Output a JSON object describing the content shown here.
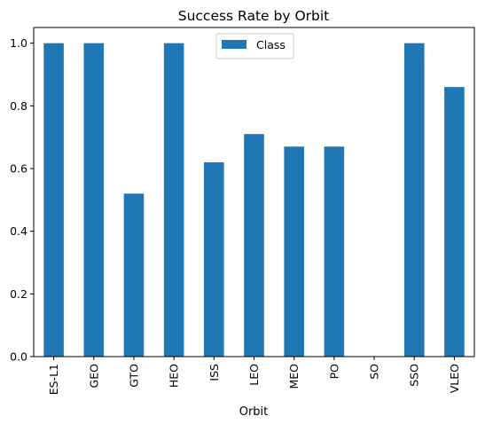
{
  "chart_data": {
    "type": "bar",
    "title": "Success Rate by Orbit",
    "xlabel": "Orbit",
    "ylabel": "",
    "categories": [
      "ES-L1",
      "GEO",
      "GTO",
      "HEO",
      "ISS",
      "LEO",
      "MEO",
      "PO",
      "SO",
      "SSO",
      "VLEO"
    ],
    "series": [
      {
        "name": "Class",
        "color": "#1f77b4",
        "values": [
          1.0,
          1.0,
          0.52,
          1.0,
          0.62,
          0.71,
          0.67,
          0.67,
          0.0,
          1.0,
          0.86
        ]
      }
    ],
    "ylim": [
      0,
      1.05
    ],
    "yticks": [
      "0.0",
      "0.2",
      "0.4",
      "0.6",
      "0.8",
      "1.0"
    ],
    "grid": false,
    "legend_position": "top-center"
  }
}
